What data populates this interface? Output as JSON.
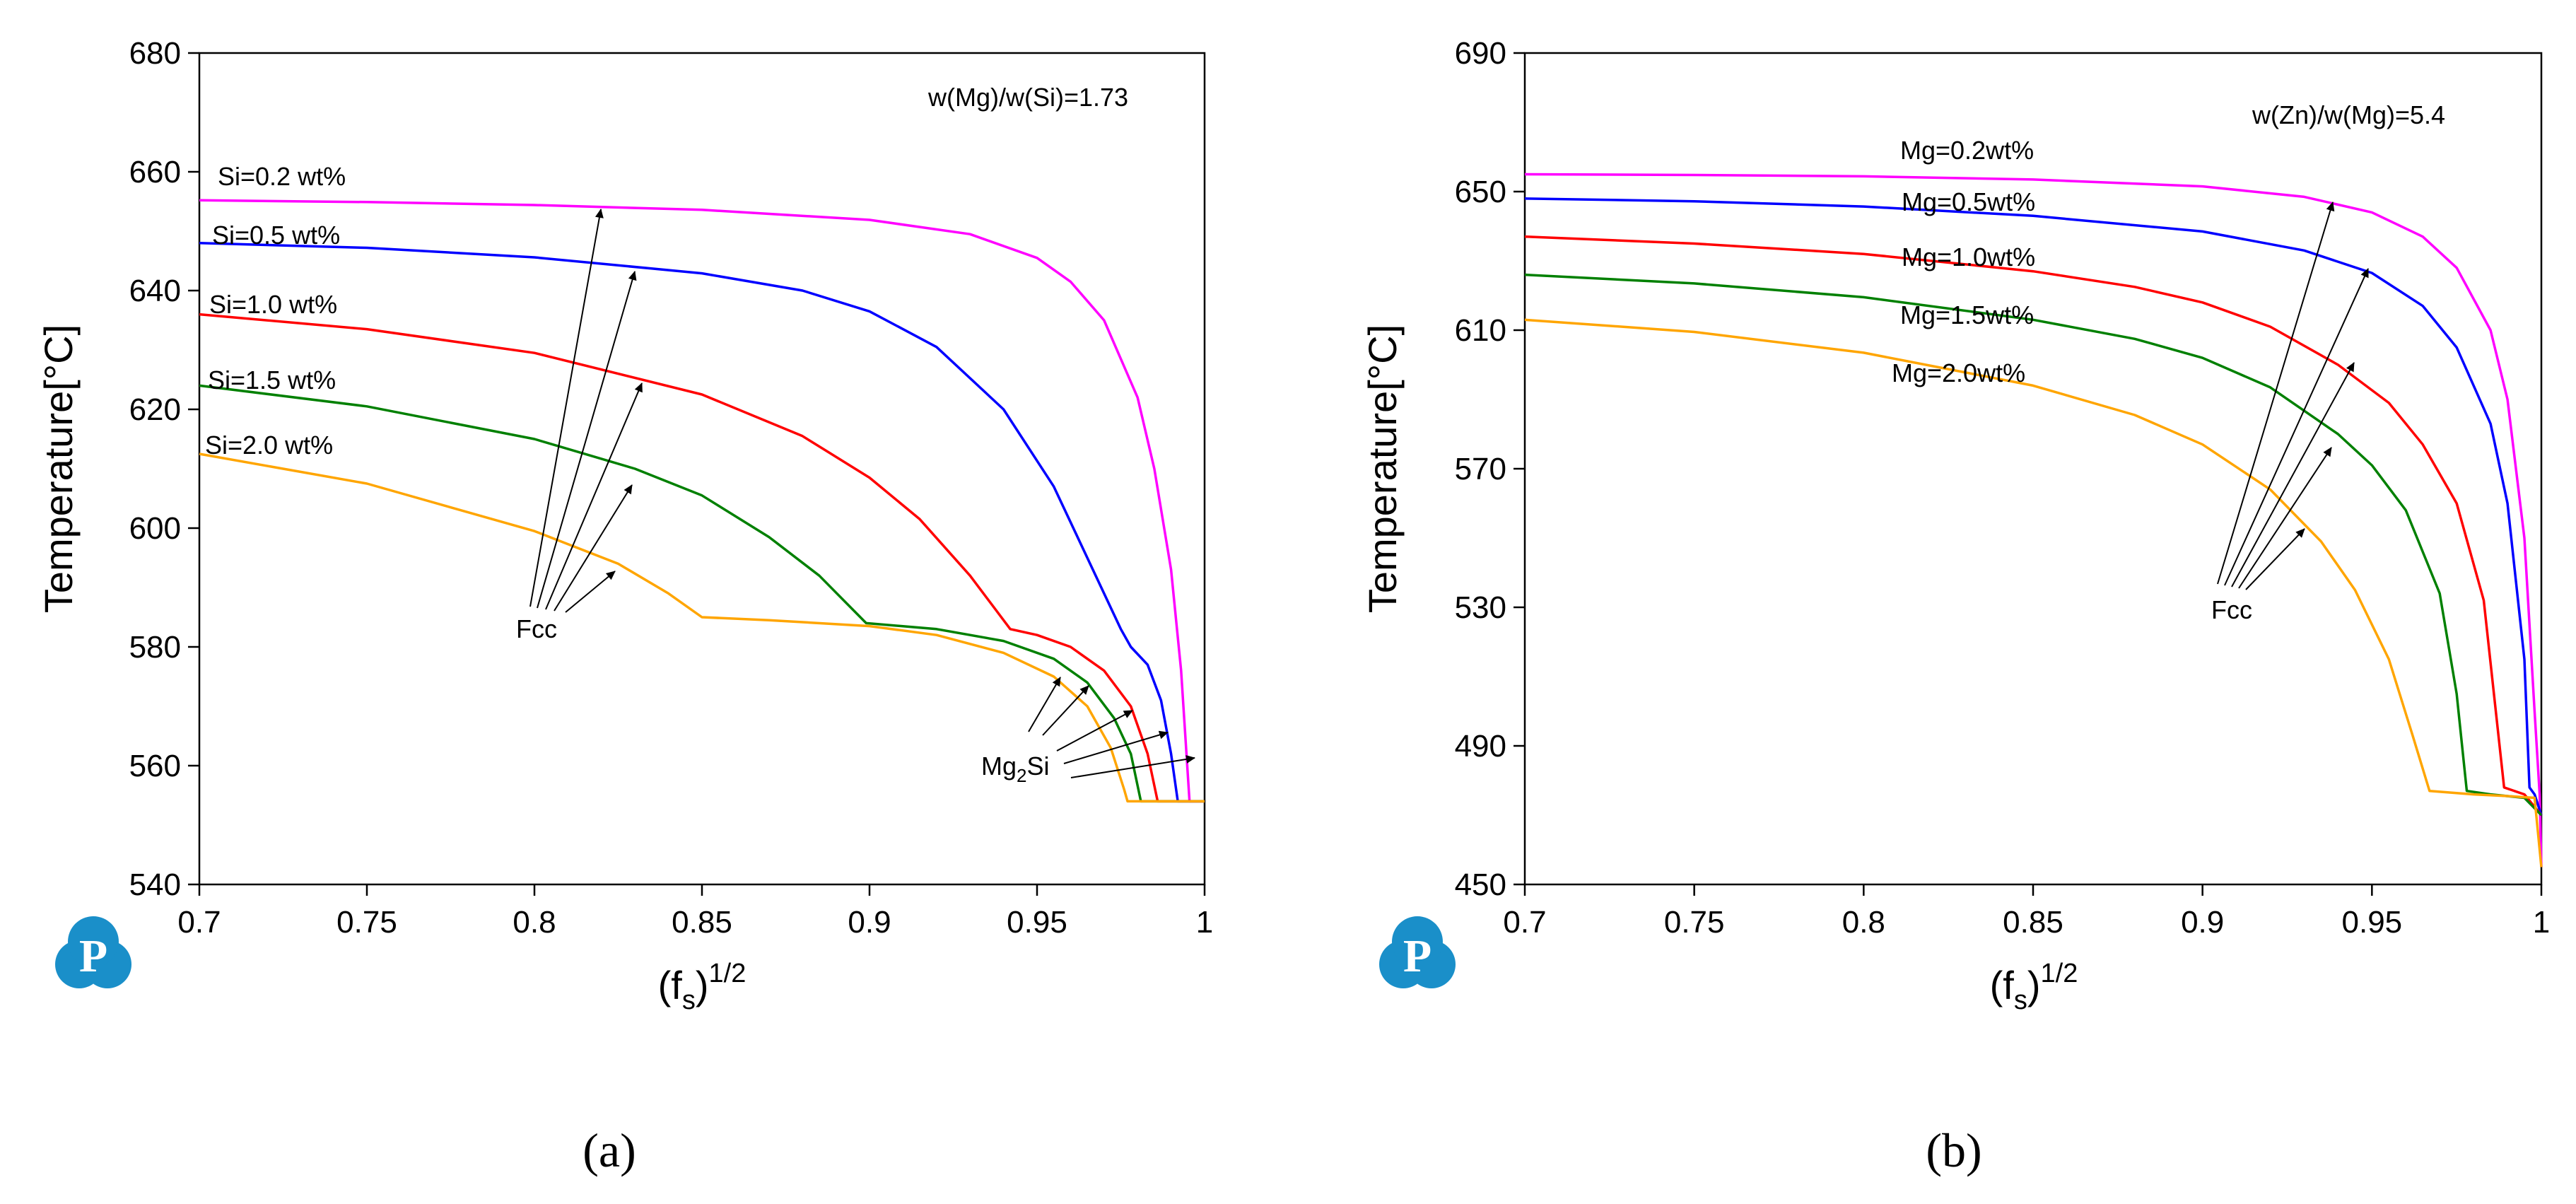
{
  "chart_data": [
    {
      "type": "line",
      "panel_label": "a",
      "ratio_note": "w(Mg)/w(Si)=1.73",
      "xlabel_base": "(f",
      "xlabel_sub": "s",
      "xlabel_close": ")",
      "xlabel_sup": "1/2",
      "ylabel": "Temperature[°C]",
      "xlim": [
        0.7,
        1.0
      ],
      "ylim": [
        540,
        680
      ],
      "xticks": [
        "0.7",
        "0.75",
        "0.8",
        "0.85",
        "0.9",
        "0.95",
        "1"
      ],
      "yticks": [
        "540",
        "560",
        "580",
        "600",
        "620",
        "640",
        "660",
        "680"
      ],
      "phase_labels": {
        "primary": "Fcc",
        "secondary_base": "Mg",
        "secondary_sub": "2",
        "secondary_rest": "Si"
      },
      "series": [
        {
          "name": "Si=0.2 wt%",
          "color": "#ff00ff",
          "points": [
            [
              0.7,
              655.2
            ],
            [
              0.75,
              654.9
            ],
            [
              0.8,
              654.4
            ],
            [
              0.85,
              653.6
            ],
            [
              0.9,
              651.9
            ],
            [
              0.93,
              649.5
            ],
            [
              0.95,
              645.5
            ],
            [
              0.96,
              641.5
            ],
            [
              0.97,
              635
            ],
            [
              0.98,
              622
            ],
            [
              0.985,
              610
            ],
            [
              0.99,
              593
            ],
            [
              0.993,
              576
            ],
            [
              0.9955,
              554
            ],
            [
              1.0,
              554
            ]
          ]
        },
        {
          "name": "Si=0.5 wt%",
          "color": "#0000ff",
          "points": [
            [
              0.7,
              648
            ],
            [
              0.75,
              647.2
            ],
            [
              0.8,
              645.6
            ],
            [
              0.85,
              642.9
            ],
            [
              0.88,
              640
            ],
            [
              0.9,
              636.5
            ],
            [
              0.92,
              630.5
            ],
            [
              0.94,
              620
            ],
            [
              0.955,
              607
            ],
            [
              0.965,
              595
            ],
            [
              0.975,
              583
            ],
            [
              0.978,
              580
            ],
            [
              0.983,
              577
            ],
            [
              0.987,
              571
            ],
            [
              0.99,
              562
            ],
            [
              0.992,
              554
            ],
            [
              1.0,
              554
            ]
          ]
        },
        {
          "name": "Si=1.0 wt%",
          "color": "#ff0000",
          "points": [
            [
              0.7,
              636
            ],
            [
              0.75,
              633.5
            ],
            [
              0.8,
              629.5
            ],
            [
              0.85,
              622.5
            ],
            [
              0.88,
              615.5
            ],
            [
              0.9,
              608.5
            ],
            [
              0.915,
              601.5
            ],
            [
              0.93,
              592
            ],
            [
              0.942,
              583
            ],
            [
              0.95,
              582
            ],
            [
              0.96,
              580
            ],
            [
              0.97,
              576
            ],
            [
              0.978,
              570
            ],
            [
              0.983,
              562
            ],
            [
              0.986,
              554
            ],
            [
              1.0,
              554
            ]
          ]
        },
        {
          "name": "Si=1.5 wt%",
          "color": "#008000",
          "points": [
            [
              0.7,
              624
            ],
            [
              0.75,
              620.5
            ],
            [
              0.8,
              615
            ],
            [
              0.83,
              610
            ],
            [
              0.85,
              605.5
            ],
            [
              0.87,
              598.5
            ],
            [
              0.885,
              592
            ],
            [
              0.899,
              584
            ],
            [
              0.92,
              583
            ],
            [
              0.94,
              581
            ],
            [
              0.955,
              578
            ],
            [
              0.965,
              574
            ],
            [
              0.973,
              568
            ],
            [
              0.978,
              562
            ],
            [
              0.981,
              554
            ],
            [
              1.0,
              554
            ]
          ]
        },
        {
          "name": "Si=2.0 wt%",
          "color": "#ffa500",
          "points": [
            [
              0.7,
              612.5
            ],
            [
              0.75,
              607.5
            ],
            [
              0.8,
              599.5
            ],
            [
              0.825,
              594
            ],
            [
              0.84,
              589
            ],
            [
              0.85,
              585
            ],
            [
              0.87,
              584.5
            ],
            [
              0.9,
              583.5
            ],
            [
              0.92,
              582
            ],
            [
              0.94,
              579
            ],
            [
              0.955,
              575
            ],
            [
              0.965,
              570
            ],
            [
              0.972,
              563
            ],
            [
              0.976,
              556
            ],
            [
              0.977,
              554
            ],
            [
              1.0,
              554
            ]
          ]
        }
      ]
    },
    {
      "type": "line",
      "panel_label": "b",
      "ratio_note": "w(Zn)/w(Mg)=5.4",
      "xlabel_base": "(f",
      "xlabel_sub": "s",
      "xlabel_close": ")",
      "xlabel_sup": "1/2",
      "ylabel": "Temperature[°C]",
      "xlim": [
        0.7,
        1.0
      ],
      "ylim": [
        450,
        690
      ],
      "xticks": [
        "0.7",
        "0.75",
        "0.8",
        "0.85",
        "0.9",
        "0.95",
        "1"
      ],
      "yticks": [
        "450",
        "490",
        "530",
        "570",
        "610",
        "650",
        "690"
      ],
      "phase_labels": {
        "primary": "Fcc"
      },
      "series": [
        {
          "name": "Mg=0.2wt%",
          "color": "#ff00ff",
          "points": [
            [
              0.7,
              655
            ],
            [
              0.75,
              654.8
            ],
            [
              0.8,
              654.4
            ],
            [
              0.85,
              653.5
            ],
            [
              0.9,
              651.5
            ],
            [
              0.93,
              648.5
            ],
            [
              0.95,
              644
            ],
            [
              0.965,
              637
            ],
            [
              0.975,
              628
            ],
            [
              0.985,
              610
            ],
            [
              0.99,
              590
            ],
            [
              0.995,
              550
            ],
            [
              0.998,
              500
            ],
            [
              0.9995,
              476
            ],
            [
              1.0,
              455
            ]
          ]
        },
        {
          "name": "Mg=0.5wt%",
          "color": "#0000ff",
          "points": [
            [
              0.7,
              648
            ],
            [
              0.75,
              647.2
            ],
            [
              0.8,
              645.7
            ],
            [
              0.85,
              643
            ],
            [
              0.9,
              638.5
            ],
            [
              0.93,
              633
            ],
            [
              0.95,
              626.5
            ],
            [
              0.965,
              617
            ],
            [
              0.975,
              605
            ],
            [
              0.985,
              583
            ],
            [
              0.99,
              560
            ],
            [
              0.995,
              515
            ],
            [
              0.9965,
              478
            ],
            [
              0.998,
              476
            ],
            [
              1.0,
              470
            ]
          ]
        },
        {
          "name": "Mg=1.0wt%",
          "color": "#ff0000",
          "points": [
            [
              0.7,
              637
            ],
            [
              0.75,
              635
            ],
            [
              0.8,
              632
            ],
            [
              0.85,
              627
            ],
            [
              0.88,
              622.5
            ],
            [
              0.9,
              618
            ],
            [
              0.92,
              611
            ],
            [
              0.94,
              600
            ],
            [
              0.955,
              589
            ],
            [
              0.965,
              577
            ],
            [
              0.975,
              560
            ],
            [
              0.983,
              532
            ],
            [
              0.989,
              478
            ],
            [
              0.995,
              476
            ],
            [
              1.0,
              470
            ]
          ]
        },
        {
          "name": "Mg=1.5wt%",
          "color": "#008000",
          "points": [
            [
              0.7,
              626
            ],
            [
              0.75,
              623.5
            ],
            [
              0.8,
              619.5
            ],
            [
              0.85,
              613
            ],
            [
              0.88,
              607.5
            ],
            [
              0.9,
              602
            ],
            [
              0.92,
              593.5
            ],
            [
              0.94,
              580
            ],
            [
              0.95,
              571
            ],
            [
              0.96,
              558
            ],
            [
              0.97,
              534
            ],
            [
              0.975,
              505
            ],
            [
              0.978,
              477
            ],
            [
              0.985,
              476
            ],
            [
              0.995,
              475
            ],
            [
              1.0,
              470
            ]
          ]
        },
        {
          "name": "Mg=2.0wt%",
          "color": "#ffa500",
          "points": [
            [
              0.7,
              613
            ],
            [
              0.75,
              609.5
            ],
            [
              0.8,
              603.5
            ],
            [
              0.85,
              594
            ],
            [
              0.88,
              585.5
            ],
            [
              0.9,
              577
            ],
            [
              0.92,
              564
            ],
            [
              0.935,
              549
            ],
            [
              0.945,
              535
            ],
            [
              0.955,
              515
            ],
            [
              0.962,
              493
            ],
            [
              0.967,
              477
            ],
            [
              0.98,
              476
            ],
            [
              0.99,
              475.5
            ],
            [
              0.998,
              475
            ],
            [
              1.0,
              455
            ]
          ]
        }
      ]
    }
  ],
  "captions": {
    "a": "(a)",
    "b": "(b)"
  },
  "logo": {
    "letter": "P"
  }
}
